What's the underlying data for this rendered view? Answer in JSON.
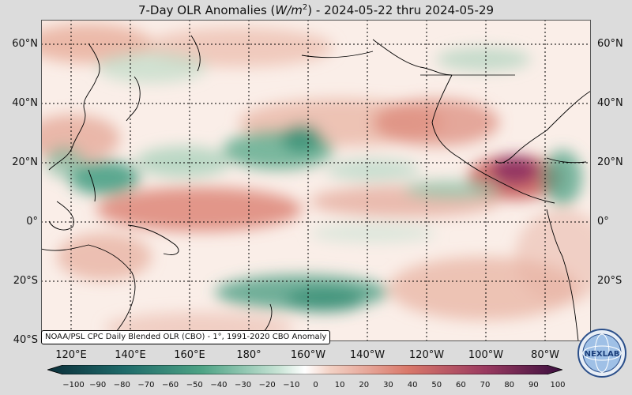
{
  "title": {
    "prefix": "7-Day OLR Anomalies (",
    "unit_base": "W/m",
    "unit_exp": "2",
    "suffix": ") - 2024-05-22 thru 2024-05-29"
  },
  "credit": "NOAA/PSL CPC Daily Blended OLR (CBO) - 1°, 1991-2020 CBO Anomaly",
  "lat_labels": [
    "60°N",
    "40°N",
    "20°N",
    "0°",
    "20°S",
    "40°S"
  ],
  "lon_labels": [
    "120°E",
    "140°E",
    "160°E",
    "180°",
    "160°W",
    "140°W",
    "120°W",
    "100°W",
    "80°W"
  ],
  "colorbar": {
    "ticks": [
      "−100",
      "−90",
      "−80",
      "−70",
      "−60",
      "−50",
      "−40",
      "−30",
      "−20",
      "−10",
      "0",
      "10",
      "20",
      "30",
      "40",
      "50",
      "60",
      "70",
      "80",
      "90",
      "100"
    ],
    "neg_color": "#0d3a3a",
    "mid_color": "#ffffff",
    "pos_color": "#3b0f3f"
  },
  "logo": {
    "text": "NEXLAB",
    "icon": "nexlab-globe-logo"
  },
  "colors": {
    "green": "#3a9a7a",
    "red": "#c8564e",
    "purple": "#7a2060",
    "land": "#000000"
  }
}
